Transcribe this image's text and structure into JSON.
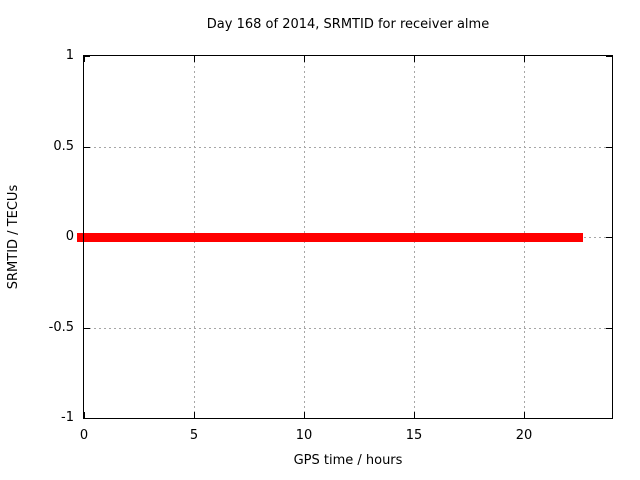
{
  "figure": {
    "background": "#ffffff",
    "frame_color": "#000000",
    "text_color": "#000000"
  },
  "chart_data": {
    "type": "line",
    "title": "Day 168 of 2014, SRMTID for receiver alme",
    "xlabel": "GPS time / hours",
    "ylabel": "SRMTID / TECUs",
    "xlim": [
      0,
      24
    ],
    "ylim": [
      -1,
      1
    ],
    "xticks": [
      0,
      5,
      10,
      15,
      20
    ],
    "xtick_labels": [
      "0",
      "5",
      "10",
      "15",
      "20"
    ],
    "yticks": [
      -1,
      -0.5,
      0,
      0.5,
      1
    ],
    "ytick_labels": [
      "-1",
      "-0.5",
      "0",
      "0.5",
      "1"
    ],
    "grid": "dotted",
    "grid_color": "#a6a6a6",
    "legend": "none",
    "series": [
      {
        "name": "SRMTID",
        "color": "#ff0000",
        "style": "thick-band",
        "x": [
          0,
          22.7
        ],
        "y": [
          0,
          0
        ]
      }
    ]
  }
}
